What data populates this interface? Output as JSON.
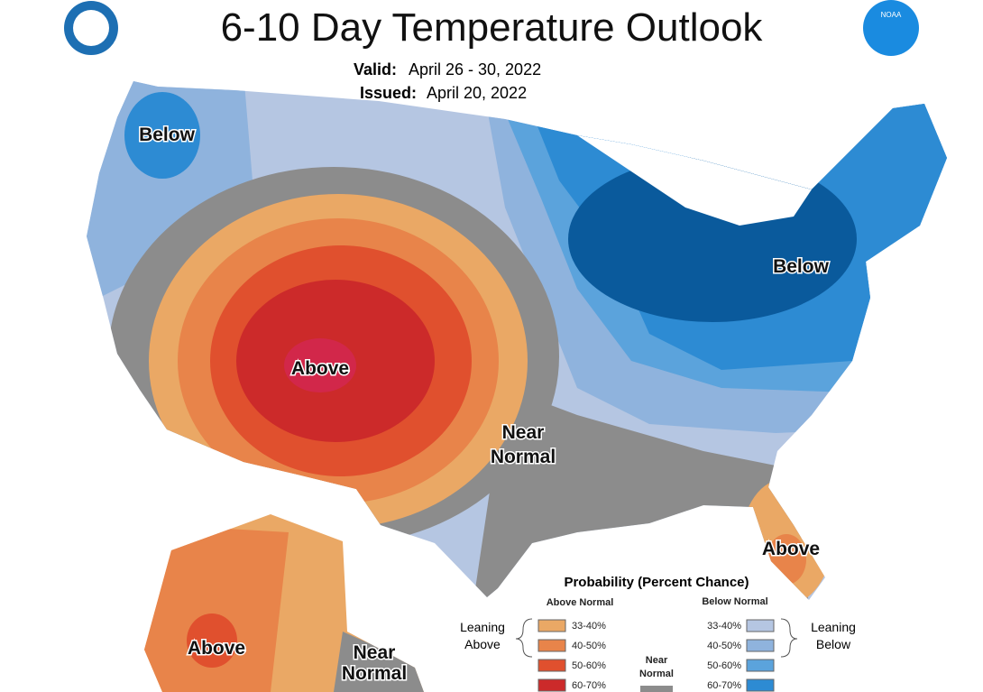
{
  "header": {
    "title": "6-10 Day Temperature Outlook",
    "valid_label": "Valid:",
    "valid": "April 26 - 30, 2022",
    "issued_label": "Issued:",
    "issued": "April 20, 2022",
    "logo": "NOAA"
  },
  "map_labels": [
    {
      "lines": [
        "Below"
      ]
    },
    {
      "lines": [
        "Below"
      ]
    },
    {
      "lines": [
        "Above"
      ]
    },
    {
      "lines": [
        "Near",
        "Normal"
      ]
    },
    {
      "lines": [
        "Above"
      ]
    },
    {
      "lines": [
        "Above"
      ]
    },
    {
      "lines": [
        "Near",
        "Normal"
      ]
    }
  ],
  "legend": {
    "title": "Probability (Percent Chance)",
    "above_header": "Above Normal",
    "below_header": "Below Normal",
    "leaning_above": [
      "Leaning",
      "Above"
    ],
    "leaning_below": [
      "Leaning",
      "Below"
    ],
    "near": [
      "Near",
      "Normal"
    ],
    "above_ranges": [
      "33-40%",
      "40-50%",
      "50-60%",
      "60-70%"
    ],
    "below_ranges": [
      "33-40%",
      "40-50%",
      "50-60%",
      "60-70%"
    ]
  }
}
